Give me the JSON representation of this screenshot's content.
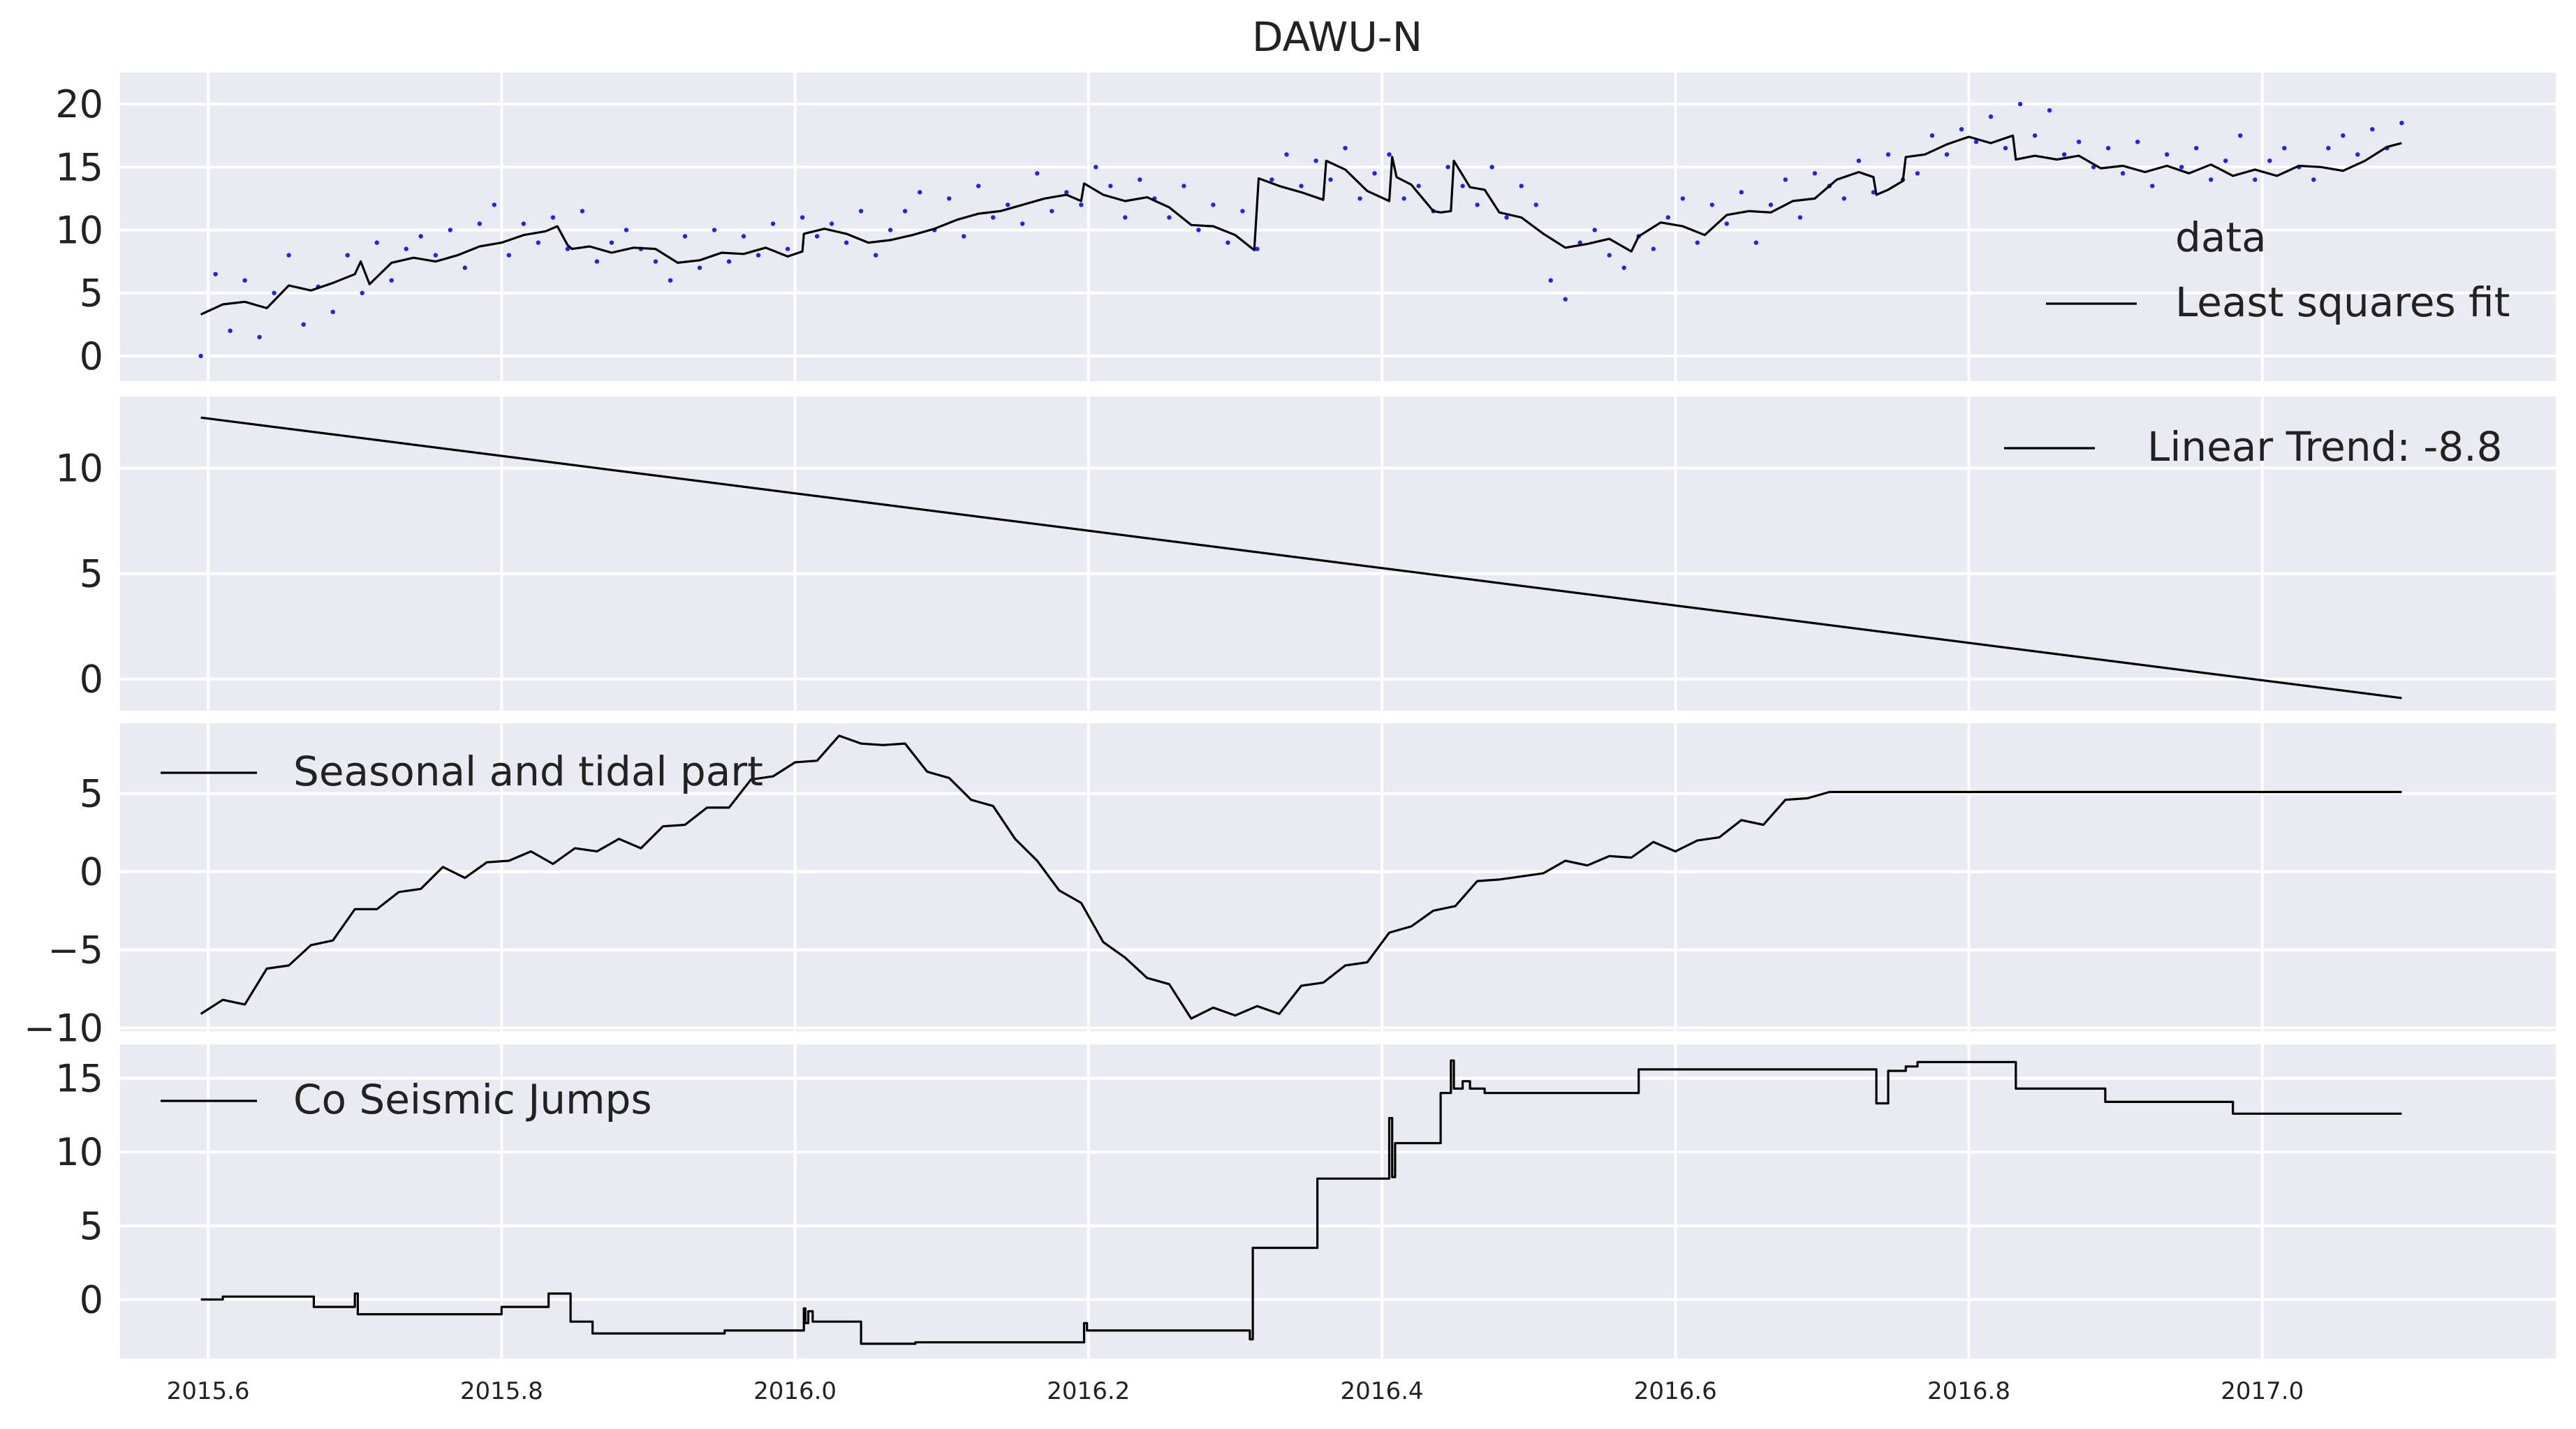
{
  "title": "DAWU-N",
  "colors": {
    "panel_background": "#eaeaf2",
    "grid": "#ffffff",
    "fit_line": "#000000",
    "data_points": "#2222ee"
  },
  "chart_data": [
    {
      "type": "scatter",
      "title": "",
      "xlim": [
        2015.54,
        2017.2
      ],
      "ylim": [
        -2,
        22.5
      ],
      "xticks": [],
      "yticks": [
        0,
        5,
        10,
        15,
        20
      ],
      "ytick_labels": [
        "0",
        "5",
        "10",
        "15",
        "20"
      ],
      "grid": true,
      "legend": {
        "placement": "right",
        "entries": [
          "data",
          "Least squares fit"
        ]
      },
      "series": [
        {
          "name": "data",
          "style": "points",
          "color": "#2222ee",
          "x": [
            2015.595,
            2015.605,
            2015.615,
            2015.625,
            2015.635,
            2015.645,
            2015.655,
            2015.665,
            2015.675,
            2015.685,
            2015.695,
            2015.705,
            2015.715,
            2015.725,
            2015.735,
            2015.745,
            2015.755,
            2015.765,
            2015.775,
            2015.785,
            2015.795,
            2015.805,
            2015.815,
            2015.825,
            2015.835,
            2015.845,
            2015.855,
            2015.865,
            2015.875,
            2015.885,
            2015.895,
            2015.905,
            2015.915,
            2015.925,
            2015.935,
            2015.945,
            2015.955,
            2015.965,
            2015.975,
            2015.985,
            2015.995,
            2016.005,
            2016.015,
            2016.025,
            2016.035,
            2016.045,
            2016.055,
            2016.065,
            2016.075,
            2016.085,
            2016.095,
            2016.105,
            2016.115,
            2016.125,
            2016.135,
            2016.145,
            2016.155,
            2016.165,
            2016.175,
            2016.185,
            2016.195,
            2016.205,
            2016.215,
            2016.225,
            2016.235,
            2016.245,
            2016.255,
            2016.265,
            2016.275,
            2016.285,
            2016.295,
            2016.305,
            2016.315,
            2016.325,
            2016.335,
            2016.345,
            2016.355,
            2016.365,
            2016.375,
            2016.385,
            2016.395,
            2016.405,
            2016.415,
            2016.425,
            2016.435,
            2016.445,
            2016.455,
            2016.465,
            2016.475,
            2016.485,
            2016.495,
            2016.505,
            2016.515,
            2016.525,
            2016.535,
            2016.545,
            2016.555,
            2016.565,
            2016.575,
            2016.585,
            2016.595,
            2016.605,
            2016.615,
            2016.625,
            2016.635,
            2016.645,
            2016.655,
            2016.665,
            2016.675,
            2016.685,
            2016.695,
            2016.705,
            2016.715,
            2016.725,
            2016.735,
            2016.745,
            2016.755,
            2016.765,
            2016.775,
            2016.785,
            2016.795,
            2016.805,
            2016.815,
            2016.825,
            2016.835,
            2016.845,
            2016.855,
            2016.865,
            2016.875,
            2016.885,
            2016.895,
            2016.905,
            2016.915,
            2016.925,
            2016.935,
            2016.945,
            2016.955,
            2016.965,
            2016.975,
            2016.985,
            2016.995,
            2017.005,
            2017.015,
            2017.025,
            2017.035,
            2017.045,
            2017.055,
            2017.065,
            2017.075,
            2017.085,
            2017.095
          ],
          "y": [
            0.0,
            6.5,
            2.0,
            6.0,
            1.5,
            5.0,
            8.0,
            2.5,
            5.5,
            3.5,
            8.0,
            5.0,
            9.0,
            6.0,
            8.5,
            9.5,
            8.0,
            10.0,
            7.0,
            10.5,
            12.0,
            8.0,
            10.5,
            9.0,
            11.0,
            8.5,
            11.5,
            7.5,
            9.0,
            10.0,
            8.5,
            7.5,
            6.0,
            9.5,
            7.0,
            10.0,
            7.5,
            9.5,
            8.0,
            10.5,
            8.5,
            11.0,
            9.5,
            10.5,
            9.0,
            11.5,
            8.0,
            10.0,
            11.5,
            13.0,
            10.0,
            12.5,
            9.5,
            13.5,
            11.0,
            12.0,
            10.5,
            14.5,
            11.5,
            13.0,
            12.0,
            15.0,
            13.5,
            11.0,
            14.0,
            12.5,
            11.0,
            13.5,
            10.0,
            12.0,
            9.0,
            11.5,
            8.5,
            14.0,
            16.0,
            13.5,
            15.5,
            14.0,
            16.5,
            12.5,
            14.5,
            16.0,
            12.5,
            13.5,
            11.5,
            15.0,
            13.5,
            12.0,
            15.0,
            11.0,
            13.5,
            12.0,
            6.0,
            4.5,
            9.0,
            10.0,
            8.0,
            7.0,
            9.5,
            8.5,
            11.0,
            12.5,
            9.0,
            12.0,
            10.5,
            13.0,
            9.0,
            12.0,
            14.0,
            11.0,
            14.5,
            13.5,
            12.5,
            15.5,
            13.0,
            16.0,
            14.0,
            14.5,
            17.5,
            16.0,
            18.0,
            17.0,
            19.0,
            16.5,
            20.0,
            17.5,
            19.5,
            16.0,
            17.0,
            15.0,
            16.5,
            14.5,
            17.0,
            13.5,
            16.0,
            15.0,
            16.5,
            14.0,
            15.5,
            17.5,
            14.0,
            15.5,
            16.5,
            15.0,
            14.0,
            16.5,
            17.5,
            16.0,
            18.0,
            16.5,
            18.5
          ]
        },
        {
          "name": "Least squares fit",
          "style": "line",
          "color": "#000000",
          "x": [
            2015.595,
            2015.61,
            2015.625,
            2015.64,
            2015.655,
            2015.67,
            2015.685,
            2015.7,
            2015.704,
            2015.71,
            2015.725,
            2015.74,
            2015.755,
            2015.77,
            2015.785,
            2015.8,
            2015.815,
            2015.83,
            2015.838,
            2015.845,
            2015.848,
            2015.86,
            2015.875,
            2015.89,
            2015.905,
            2015.92,
            2015.935,
            2015.95,
            2015.965,
            2015.98,
            2015.995,
            2016.005,
            2016.006,
            2016.02,
            2016.035,
            2016.05,
            2016.065,
            2016.08,
            2016.095,
            2016.11,
            2016.125,
            2016.14,
            2016.155,
            2016.17,
            2016.185,
            2016.195,
            2016.197,
            2016.21,
            2016.225,
            2016.24,
            2016.255,
            2016.27,
            2016.285,
            2016.3,
            2016.313,
            2016.316,
            2016.33,
            2016.345,
            2016.36,
            2016.362,
            2016.375,
            2016.39,
            2016.405,
            2016.407,
            2016.41,
            2016.42,
            2016.435,
            2016.44,
            2016.447,
            2016.449,
            2016.46,
            2016.47,
            2016.48,
            2016.495,
            2016.51,
            2016.525,
            2016.54,
            2016.555,
            2016.57,
            2016.575,
            2016.59,
            2016.605,
            2016.62,
            2016.635,
            2016.65,
            2016.665,
            2016.68,
            2016.695,
            2016.71,
            2016.725,
            2016.735,
            2016.737,
            2016.745,
            2016.755,
            2016.757,
            2016.77,
            2016.785,
            2016.8,
            2016.815,
            2016.83,
            2016.832,
            2016.845,
            2016.86,
            2016.875,
            2016.89,
            2016.905,
            2016.92,
            2016.935,
            2016.95,
            2016.965,
            2016.98,
            2016.995,
            2017.01,
            2017.025,
            2017.04,
            2017.055,
            2017.07,
            2017.085,
            2017.095
          ],
          "y": [
            3.3,
            4.1,
            4.3,
            3.8,
            5.6,
            5.2,
            5.8,
            6.5,
            7.5,
            5.7,
            7.4,
            7.8,
            7.5,
            8.0,
            8.7,
            9.0,
            9.6,
            9.9,
            10.3,
            8.8,
            8.5,
            8.7,
            8.2,
            8.6,
            8.5,
            7.4,
            7.6,
            8.2,
            8.1,
            8.6,
            7.9,
            8.3,
            9.7,
            10.1,
            9.7,
            9.0,
            9.2,
            9.6,
            10.1,
            10.8,
            11.3,
            11.5,
            12.0,
            12.5,
            12.8,
            12.3,
            13.7,
            12.8,
            12.3,
            12.6,
            11.8,
            10.4,
            10.3,
            9.6,
            8.4,
            14.1,
            13.5,
            13.0,
            12.4,
            15.5,
            14.8,
            13.1,
            12.3,
            15.8,
            14.2,
            13.6,
            11.5,
            11.4,
            11.5,
            15.5,
            13.4,
            13.2,
            11.4,
            11.0,
            9.7,
            8.6,
            8.9,
            9.3,
            8.3,
            9.5,
            10.6,
            10.3,
            9.6,
            11.2,
            11.5,
            11.4,
            12.3,
            12.5,
            14.0,
            14.6,
            14.2,
            12.8,
            13.2,
            13.9,
            15.8,
            16.0,
            16.8,
            17.4,
            16.9,
            17.5,
            15.6,
            15.9,
            15.6,
            15.9,
            14.9,
            15.1,
            14.6,
            15.1,
            14.5,
            15.2,
            14.3,
            14.8,
            14.3,
            15.1,
            15.0,
            14.7,
            15.5,
            16.6,
            16.9
          ]
        }
      ]
    },
    {
      "type": "line",
      "title": "",
      "xlim": [
        2015.54,
        2017.2
      ],
      "ylim": [
        -1.5,
        13.4
      ],
      "xticks": [],
      "yticks": [
        0,
        5,
        10
      ],
      "ytick_labels": [
        "0",
        "5",
        "10"
      ],
      "grid": true,
      "legend": {
        "placement": "top-right",
        "entries": [
          "Linear Trend: -8.8"
        ]
      },
      "series": [
        {
          "name": "Linear Trend: -8.8",
          "x": [
            2015.595,
            2017.095
          ],
          "y": [
            12.4,
            -0.9
          ]
        }
      ]
    },
    {
      "type": "line",
      "title": "",
      "xlim": [
        2015.54,
        2017.2
      ],
      "ylim": [
        -10.2,
        9.5
      ],
      "xticks": [],
      "yticks": [
        -10,
        -5,
        0,
        5
      ],
      "ytick_labels": [
        "−10",
        "−5",
        "0",
        "5"
      ],
      "grid": true,
      "legend": {
        "placement": "top-left",
        "entries": [
          "Seasonal and tidal part"
        ]
      },
      "series": [
        {
          "name": "Seasonal and tidal part",
          "x": [
            2015.595,
            2015.61,
            2015.625,
            2015.64,
            2015.655,
            2015.67,
            2015.685,
            2015.7,
            2015.715,
            2015.73,
            2015.745,
            2015.76,
            2015.775,
            2015.79,
            2015.805,
            2015.82,
            2015.835,
            2015.85,
            2015.865,
            2015.88,
            2015.895,
            2015.91,
            2015.925,
            2015.94,
            2015.955,
            2015.97,
            2015.985,
            2016.0,
            2016.015,
            2016.03,
            2016.045,
            2016.06,
            2016.075,
            2016.09,
            2016.105,
            2016.12,
            2016.135,
            2016.15,
            2016.165,
            2016.18,
            2016.195,
            2016.21,
            2016.225,
            2016.24,
            2016.255,
            2016.27,
            2016.285,
            2016.3,
            2016.315,
            2016.33,
            2016.345,
            2016.36,
            2016.375,
            2016.39,
            2016.405,
            2016.42,
            2016.435,
            2016.45,
            2016.465,
            2016.48,
            2016.495,
            2016.51,
            2016.525,
            2016.54,
            2016.555,
            2016.57,
            2016.585,
            2016.6,
            2016.615,
            2016.63,
            2016.645,
            2016.66,
            2016.675,
            2016.69,
            2016.705,
            2016.72,
            2016.735,
            2016.75,
            2016.765,
            2016.78,
            2016.795,
            2016.81,
            2016.825,
            2016.84,
            2016.855,
            2016.87,
            2016.885,
            2016.9,
            2016.915,
            2016.93,
            2016.945,
            2016.96,
            2016.975,
            2016.99,
            2017.005,
            2017.02,
            2017.035,
            2017.05,
            2017.065,
            2017.08,
            2017.095
          ],
          "y": [
            -9.1,
            -8.2,
            -8.5,
            -6.2,
            -6.0,
            -4.7,
            -4.4,
            -2.4,
            -2.4,
            -1.3,
            -1.1,
            0.3,
            -0.4,
            0.6,
            0.7,
            1.3,
            0.5,
            1.5,
            1.3,
            2.1,
            1.5,
            2.9,
            3.0,
            4.1,
            4.1,
            5.9,
            6.1,
            7.0,
            7.1,
            8.7,
            8.2,
            8.1,
            8.2,
            6.4,
            6.0,
            4.6,
            4.2,
            2.1,
            0.7,
            -1.2,
            -2.0,
            -4.5,
            -5.5,
            -6.8,
            -7.2,
            -9.4,
            -8.7,
            -9.2,
            -8.6,
            -9.1,
            -7.3,
            -7.1,
            -6.0,
            -5.8,
            -3.9,
            -3.5,
            -2.5,
            -2.2,
            -0.6,
            -0.5,
            -0.3,
            -0.1,
            0.7,
            0.4,
            1.0,
            0.9,
            1.9,
            1.3,
            2.0,
            2.2,
            3.3,
            3.0,
            4.6,
            4.7,
            5.1,
            5.1,
            5.1,
            5.1,
            5.1,
            5.1,
            5.1,
            5.1,
            5.1,
            5.1,
            5.1,
            5.1,
            5.1,
            5.1,
            5.1,
            5.1,
            5.1,
            5.1,
            5.1,
            5.1,
            5.1,
            5.1,
            5.1,
            5.1,
            5.1,
            5.1,
            5.1
          ]
        }
      ]
    },
    {
      "type": "line",
      "title": "",
      "xlim": [
        2015.54,
        2017.2
      ],
      "ylim": [
        -4,
        17.3
      ],
      "xticks": [
        2015.6,
        2015.8,
        2016.0,
        2016.2,
        2016.4,
        2016.6,
        2016.8,
        2017.0
      ],
      "xtick_labels": [
        "2015.6",
        "2015.8",
        "2016.0",
        "2016.2",
        "2016.4",
        "2016.6",
        "2016.8",
        "2017.0"
      ],
      "yticks": [
        0,
        5,
        10,
        15
      ],
      "ytick_labels": [
        "0",
        "5",
        "10",
        "15"
      ],
      "grid": true,
      "legend": {
        "placement": "top-left",
        "entries": [
          "Co Seismic Jumps"
        ]
      },
      "series": [
        {
          "name": "Co Seismic Jumps",
          "step": true,
          "x": [
            2015.595,
            2015.61,
            2015.672,
            2015.7,
            2015.702,
            2015.705,
            2015.8,
            2015.832,
            2015.847,
            2015.862,
            2015.952,
            2016.006,
            2016.007,
            2016.009,
            2016.012,
            2016.025,
            2016.045,
            2016.082,
            2016.197,
            2016.199,
            2016.203,
            2016.31,
            2016.312,
            2016.316,
            2016.356,
            2016.385,
            2016.405,
            2016.407,
            2016.409,
            2016.418,
            2016.44,
            2016.447,
            2016.449,
            2016.455,
            2016.46,
            2016.47,
            2016.518,
            2016.575,
            2016.737,
            2016.745,
            2016.757,
            2016.765,
            2016.79,
            2016.832,
            2016.865,
            2016.893,
            2016.98,
            2017.095
          ],
          "y": [
            0.0,
            0.2,
            -0.5,
            0.4,
            -1.0,
            -1.0,
            -0.5,
            0.4,
            -1.5,
            -2.3,
            -2.1,
            -0.6,
            -1.6,
            -0.8,
            -1.5,
            -1.5,
            -3.0,
            -2.9,
            -1.6,
            -2.1,
            -2.1,
            -2.7,
            3.5,
            3.5,
            8.2,
            8.2,
            12.3,
            8.3,
            10.6,
            10.6,
            14.0,
            16.2,
            14.3,
            14.8,
            14.3,
            14.0,
            14.0,
            15.6,
            13.3,
            15.5,
            15.8,
            16.1,
            16.1,
            14.3,
            14.3,
            13.4,
            12.6,
            12.6
          ]
        }
      ]
    }
  ]
}
